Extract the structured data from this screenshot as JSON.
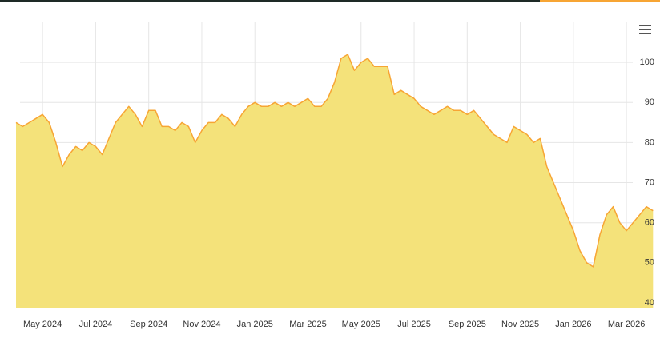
{
  "chart_data": {
    "type": "area",
    "categories": [
      null,
      null,
      null,
      null,
      "May 2024",
      null,
      null,
      null,
      null,
      null,
      null,
      null,
      "Jul 2024",
      null,
      null,
      null,
      null,
      null,
      null,
      null,
      "Sep 2024",
      null,
      null,
      null,
      null,
      null,
      null,
      null,
      "Nov 2024",
      null,
      null,
      null,
      null,
      null,
      null,
      null,
      "Jan 2025",
      null,
      null,
      null,
      null,
      null,
      null,
      null,
      "Mar 2025",
      null,
      null,
      null,
      null,
      null,
      null,
      null,
      "May 2025",
      null,
      null,
      null,
      null,
      null,
      null,
      null,
      "Jul 2025",
      null,
      null,
      null,
      null,
      null,
      null,
      null,
      "Sep 2025",
      null,
      null,
      null,
      null,
      null,
      null,
      null,
      "Nov 2025",
      null,
      null,
      null,
      null,
      null,
      null,
      null,
      "Jan 2026",
      null,
      null,
      null,
      null,
      null,
      null,
      null,
      "Mar 2026",
      null,
      null,
      null,
      null
    ],
    "values": [
      85,
      84,
      85,
      86,
      87,
      85,
      80,
      74,
      77,
      79,
      78,
      80,
      79,
      77,
      81,
      85,
      87,
      89,
      87,
      84,
      88,
      88,
      84,
      84,
      83,
      85,
      84,
      80,
      83,
      85,
      85,
      87,
      86,
      84,
      87,
      89,
      90,
      89,
      89,
      90,
      89,
      90,
      89,
      90,
      91,
      89,
      89,
      91,
      95,
      101,
      102,
      98,
      100,
      101,
      99,
      99,
      99,
      92,
      93,
      92,
      91,
      89,
      88,
      87,
      88,
      89,
      88,
      88,
      87,
      88,
      86,
      84,
      82,
      81,
      80,
      84,
      83,
      82,
      80,
      81,
      74,
      70,
      66,
      62,
      58,
      53,
      50,
      49,
      57,
      62,
      64,
      60,
      58,
      60,
      62,
      64,
      63
    ],
    "color": "#f7a534",
    "fill": "#f4e27a",
    "ylim": [
      38.8,
      110
    ],
    "yticks": [
      40,
      50,
      60,
      70,
      80,
      90,
      100
    ],
    "grid": true
  }
}
